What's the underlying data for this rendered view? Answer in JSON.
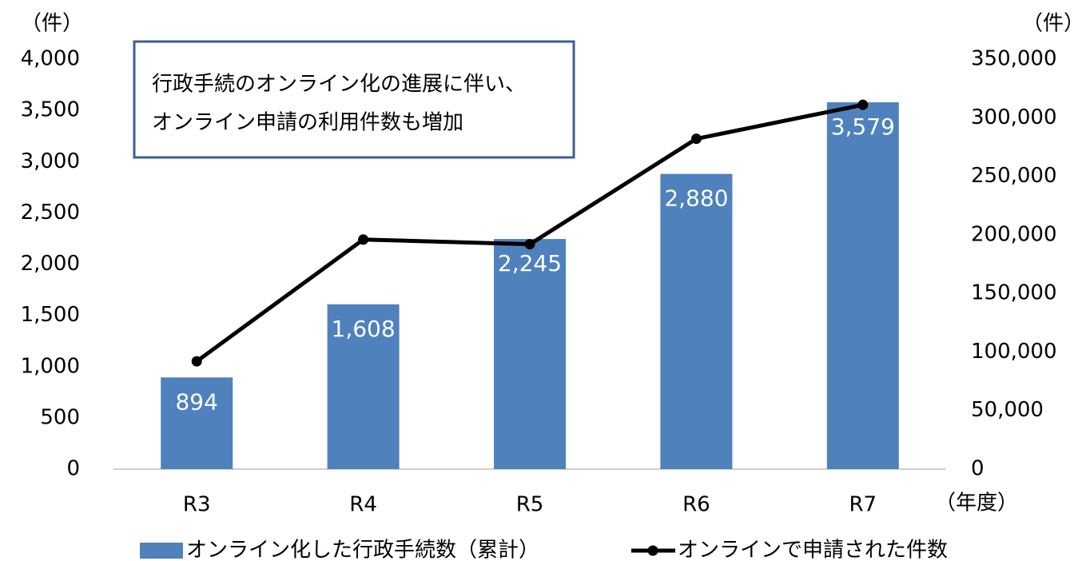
{
  "chart_data": {
    "type": "bar",
    "annotation": [
      "行政手続のオンライン化の進展に伴い、",
      "オンライン申請の利用件数も増加"
    ],
    "y_label": "（件）",
    "y2_label": "（件）",
    "x_label": "（年度）",
    "categories": [
      "R3",
      "R4",
      "R5",
      "R6",
      "R7"
    ],
    "series": [
      {
        "name": "オンライン化した行政手続数（累計）",
        "type": "bar",
        "color": "#4f81bd",
        "values": [
          894,
          1608,
          2245,
          2880,
          3579
        ],
        "value_labels": [
          "894",
          "1,608",
          "2,245",
          "2,880",
          "3,579"
        ]
      },
      {
        "name": "オンラインで申請された件数",
        "type": "line",
        "axis": "y2",
        "color": "#000000",
        "values": [
          92000,
          196000,
          192000,
          282000,
          311000
        ]
      }
    ],
    "ylim": [
      0,
      4000
    ],
    "yticks": [
      0,
      500,
      {
        "value": 1000,
        "label": "1,000"
      },
      {
        "value": 1500,
        "label": "1,500"
      },
      {
        "value": 2000,
        "label": "2,000"
      },
      {
        "value": 2500,
        "label": "2,500"
      },
      {
        "value": 3000,
        "label": "3,000"
      },
      {
        "value": 3500,
        "label": "3,500"
      },
      {
        "value": 4000,
        "label": "4,000"
      }
    ],
    "y2lim": [
      0,
      350000
    ],
    "y2ticks": [
      0,
      {
        "value": 50000,
        "label": "50,000"
      },
      {
        "value": 100000,
        "label": "100,000"
      },
      {
        "value": 150000,
        "label": "150,000"
      },
      {
        "value": 200000,
        "label": "200,000"
      },
      {
        "value": 250000,
        "label": "250,000"
      },
      {
        "value": 300000,
        "label": "300,000"
      },
      {
        "value": 350000,
        "label": "350,000"
      }
    ],
    "legend": "bottom"
  }
}
